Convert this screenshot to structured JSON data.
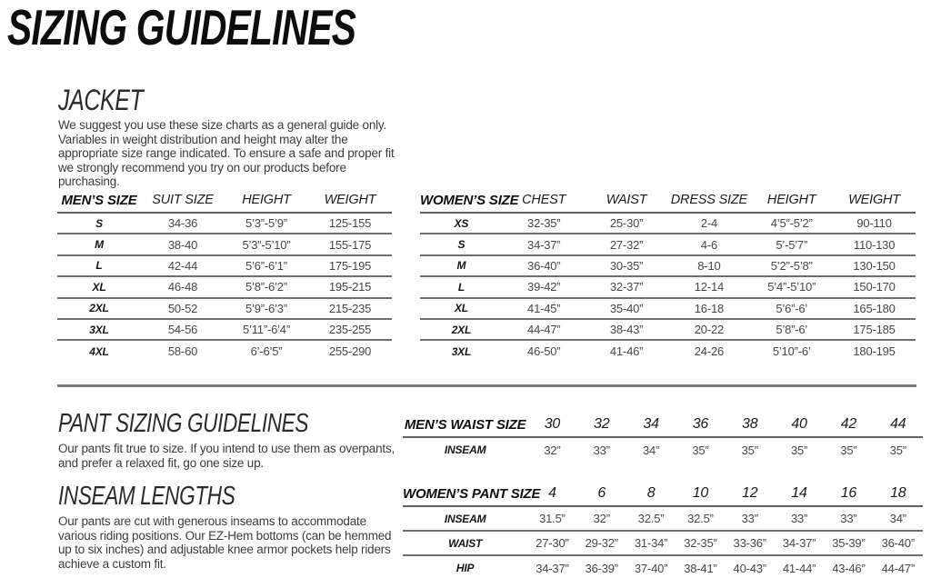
{
  "page": {
    "title": "SIZING GUIDELINES"
  },
  "jacket_section": {
    "heading": "JACKET",
    "description": "We suggest you use these size charts as a general guide only. Variables in weight distribution and height may alter the appropriate size range indicated. To ensure a safe and proper fit we strongly recommend you try on our products before purchasing."
  },
  "pant_section": {
    "heading": "PANT SIZING GUIDELINES",
    "description": "Our pants fit true to size. If you intend to use them as overpants, and prefer a relaxed fit,  go one size up."
  },
  "inseam_section": {
    "heading": "INSEAM LENGTHS",
    "description": "Our pants are cut with generous inseams to accommodate various riding positions. Our EZ-Hem bottoms (can be hemmed up to six inches) and adjustable knee armor pockets help riders achieve a custom fit."
  },
  "mens_jacket_table": {
    "headers": [
      "MEN’S SIZE",
      "SUIT SIZE",
      "HEIGHT",
      "WEIGHT"
    ],
    "rows": [
      [
        "S",
        "34-36",
        "5’3”-5’9”",
        "125-155"
      ],
      [
        "M",
        "38-40",
        "5’3”-5’10”",
        "155-175"
      ],
      [
        "L",
        "42-44",
        "5’6”-6’1”",
        "175-195"
      ],
      [
        "XL",
        "46-48",
        "5’8”-6’2”",
        "195-215"
      ],
      [
        "2XL",
        "50-52",
        "5’9”-6’3”",
        "215-235"
      ],
      [
        "3XL",
        "54-56",
        "5’11”-6’4”",
        "235-255"
      ],
      [
        "4XL",
        "58-60",
        "6’-6’5”",
        "255-290"
      ]
    ]
  },
  "womens_jacket_table": {
    "headers": [
      "WOMEN’S SIZE",
      "CHEST",
      "WAIST",
      "DRESS SIZE",
      "HEIGHT",
      "WEIGHT"
    ],
    "rows": [
      [
        "XS",
        "32-35”",
        "25-30”",
        "2-4",
        "4’5”-5’2”",
        "90-110"
      ],
      [
        "S",
        "34-37”",
        "27-32”",
        "4-6",
        "5’-5’7”",
        "110-130"
      ],
      [
        "M",
        "36-40”",
        "30-35”",
        "8-10",
        "5’2”-5’8”",
        "130-150"
      ],
      [
        "L",
        "39-42”",
        "32-37”",
        "12-14",
        "5’4”-5’10”",
        "150-170"
      ],
      [
        "XL",
        "41-45”",
        "35-40”",
        "16-18",
        "5’6”-6’",
        "165-180"
      ],
      [
        "2XL",
        "44-47”",
        "38-43”",
        "20-22",
        "5’8”-6’",
        "175-185"
      ],
      [
        "3XL",
        "46-50”",
        "41-46”",
        "24-26",
        "5’10”-6’",
        "180-195"
      ]
    ]
  },
  "mens_waist_table": {
    "headers": [
      "MEN’S WAIST SIZE",
      "30",
      "32",
      "34",
      "36",
      "38",
      "40",
      "42",
      "44"
    ],
    "rows": [
      [
        "INSEAM",
        "32”",
        "33”",
        "34”",
        "35”",
        "35”",
        "35”",
        "35”",
        "35”"
      ]
    ]
  },
  "womens_pant_table": {
    "headers": [
      "WOMEN’S PANT SIZE",
      "4",
      "6",
      "8",
      "10",
      "12",
      "14",
      "16",
      "18"
    ],
    "rows": [
      [
        "INSEAM",
        "31.5”",
        "32”",
        "32.5”",
        "32.5”",
        "33”",
        "33”",
        "33”",
        "34”"
      ],
      [
        "WAIST",
        "27-30”",
        "29-32”",
        "31-34”",
        "32-35”",
        "33-36”",
        "34-37”",
        "35-39”",
        "36-40”"
      ],
      [
        "HIP",
        "34-37”",
        "36-39”",
        "37-40”",
        "38-41”",
        "40-43”",
        "41-44”",
        "43-46”",
        "44-47”"
      ]
    ]
  },
  "colors": {
    "text_primary": "#0d0d0d",
    "text_values": "#474747",
    "rule_gray": "#6e6e6e",
    "background": "#ffffff"
  }
}
